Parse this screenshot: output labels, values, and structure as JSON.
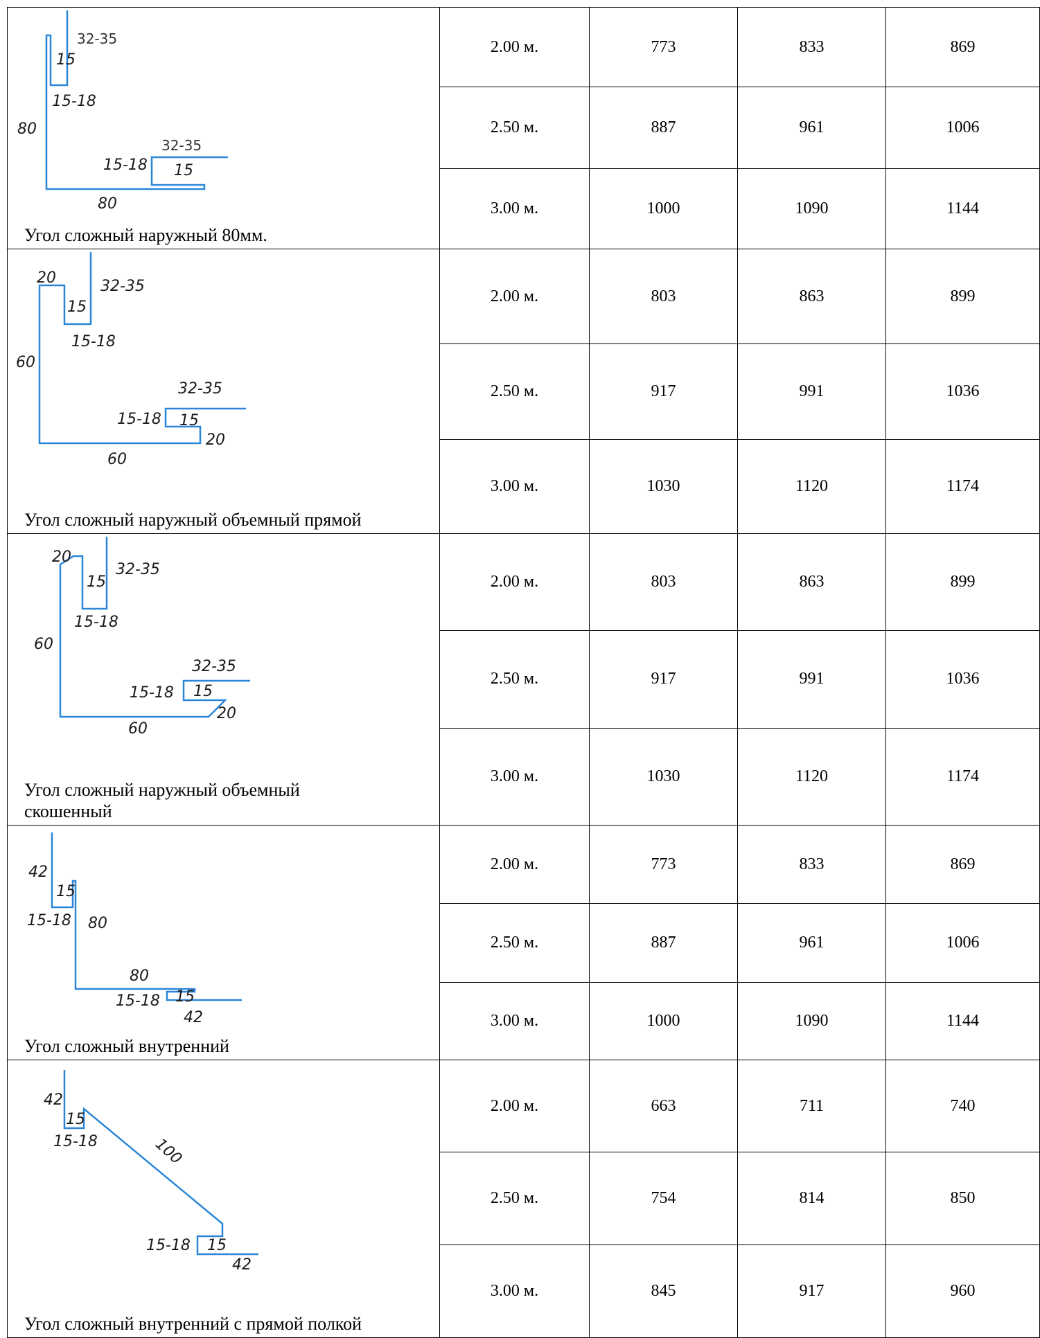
{
  "products": [
    {
      "name": "Угол сложный наружный 80мм.",
      "dims": {
        "top": "32-35",
        "inner": "15",
        "gap": "15-18",
        "height": "80",
        "btm_top": "32-35",
        "btm_gap": "15-18",
        "btm_inner": "15",
        "base": "80"
      },
      "rows": [
        {
          "length": "2.00 м.",
          "p1": "773",
          "p2": "833",
          "p3": "869"
        },
        {
          "length": "2.50 м.",
          "p1": "887",
          "p2": "961",
          "p3": "1006"
        },
        {
          "length": "3.00 м.",
          "p1": "1000",
          "p2": "1090",
          "p3": "1144"
        }
      ]
    },
    {
      "name": "Угол сложный наружный объемный прямой",
      "dims": {
        "corner": "20",
        "inner": "15",
        "top": "32-35",
        "gap": "15-18",
        "height": "60",
        "btm_top": "32-35",
        "btm_gap": "15-18",
        "btm_inner": "15",
        "btm_corner": "20",
        "base": "60"
      },
      "rows": [
        {
          "length": "2.00 м.",
          "p1": "803",
          "p2": "863",
          "p3": "899"
        },
        {
          "length": "2.50 м.",
          "p1": "917",
          "p2": "991",
          "p3": "1036"
        },
        {
          "length": "3.00 м.",
          "p1": "1030",
          "p2": "1120",
          "p3": "1174"
        }
      ]
    },
    {
      "name": "Угол сложный наружный объемный скошенный",
      "dims": {
        "corner": "20",
        "inner": "15",
        "top": "32-35",
        "gap": "15-18",
        "height": "60",
        "btm_top": "32-35",
        "btm_gap": "15-18",
        "btm_inner": "15",
        "btm_corner": "20",
        "base": "60"
      },
      "rows": [
        {
          "length": "2.00 м.",
          "p1": "803",
          "p2": "863",
          "p3": "899"
        },
        {
          "length": "2.50 м.",
          "p1": "917",
          "p2": "991",
          "p3": "1036"
        },
        {
          "length": "3.00 м.",
          "p1": "1030",
          "p2": "1120",
          "p3": "1174"
        }
      ]
    },
    {
      "name": "Угол сложный внутренний",
      "dims": {
        "top": "42",
        "inner": "15",
        "gap": "15-18",
        "height": "80",
        "base": "80",
        "btm_gap": "15-18",
        "btm_inner": "15",
        "btm": "42"
      },
      "rows": [
        {
          "length": "2.00 м.",
          "p1": "773",
          "p2": "833",
          "p3": "869"
        },
        {
          "length": "2.50 м.",
          "p1": "887",
          "p2": "961",
          "p3": "1006"
        },
        {
          "length": "3.00 м.",
          "p1": "1000",
          "p2": "1090",
          "p3": "1144"
        }
      ]
    },
    {
      "name": "Угол сложный внутренний с прямой полкой",
      "dims": {
        "top": "42",
        "inner": "15",
        "gap": "15-18",
        "diag": "100",
        "btm_gap": "15-18",
        "btm_inner": "15",
        "btm": "42"
      },
      "rows": [
        {
          "length": "2.00 м.",
          "p1": "663",
          "p2": "711",
          "p3": "740"
        },
        {
          "length": "2.50 м.",
          "p1": "754",
          "p2": "814",
          "p3": "850"
        },
        {
          "length": "3.00 м.",
          "p1": "845",
          "p2": "917",
          "p3": "960"
        }
      ]
    }
  ]
}
